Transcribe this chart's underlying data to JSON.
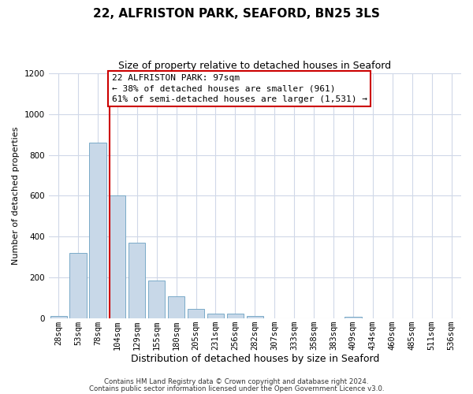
{
  "title": "22, ALFRISTON PARK, SEAFORD, BN25 3LS",
  "subtitle": "Size of property relative to detached houses in Seaford",
  "xlabel": "Distribution of detached houses by size in Seaford",
  "ylabel": "Number of detached properties",
  "bar_labels": [
    "28sqm",
    "53sqm",
    "78sqm",
    "104sqm",
    "129sqm",
    "155sqm",
    "180sqm",
    "205sqm",
    "231sqm",
    "256sqm",
    "282sqm",
    "307sqm",
    "333sqm",
    "358sqm",
    "383sqm",
    "409sqm",
    "434sqm",
    "460sqm",
    "485sqm",
    "511sqm",
    "536sqm"
  ],
  "bar_values": [
    10,
    320,
    860,
    600,
    370,
    185,
    105,
    45,
    20,
    20,
    10,
    0,
    0,
    0,
    0,
    5,
    0,
    0,
    0,
    0,
    0
  ],
  "bar_color": "#c8d8e8",
  "bar_edgecolor": "#7aaac8",
  "vline_color": "#cc0000",
  "annotation_line1": "22 ALFRISTON PARK: 97sqm",
  "annotation_line2": "← 38% of detached houses are smaller (961)",
  "annotation_line3": "61% of semi-detached houses are larger (1,531) →",
  "annotation_box_edgecolor": "#cc0000",
  "ylim": [
    0,
    1200
  ],
  "yticks": [
    0,
    200,
    400,
    600,
    800,
    1000,
    1200
  ],
  "footer1": "Contains HM Land Registry data © Crown copyright and database right 2024.",
  "footer2": "Contains public sector information licensed under the Open Government Licence v3.0.",
  "background_color": "#ffffff",
  "grid_color": "#d0d8e8",
  "title_fontsize": 11,
  "subtitle_fontsize": 9,
  "tick_fontsize": 7.5,
  "ylabel_fontsize": 8,
  "xlabel_fontsize": 9
}
